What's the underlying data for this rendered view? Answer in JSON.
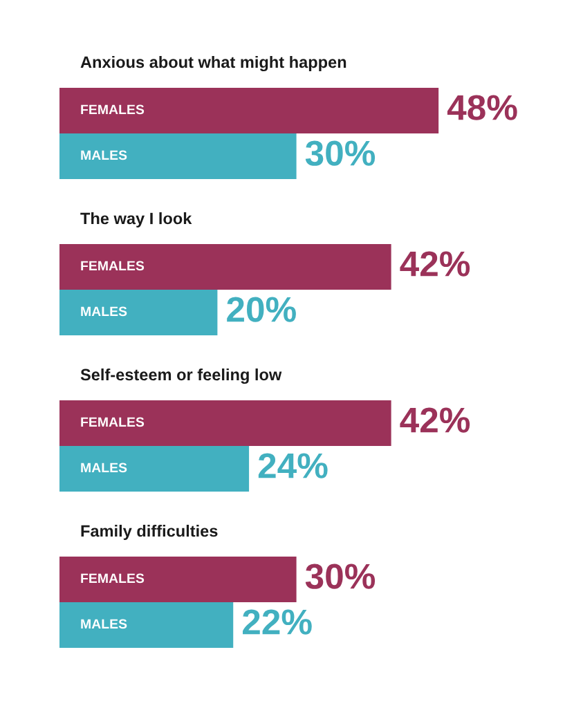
{
  "chart_data": {
    "type": "bar",
    "orientation": "horizontal",
    "categories": [
      "Anxious about what might happen",
      "The way I look",
      "Self-esteem or feeling low",
      "Family difficulties"
    ],
    "series": [
      {
        "name": "FEMALES",
        "color": "#9b3259",
        "values": [
          48,
          42,
          42,
          30
        ],
        "value_labels": [
          "48%",
          "42%",
          "42%",
          "30%"
        ]
      },
      {
        "name": "MALES",
        "color": "#42b0c0",
        "values": [
          30,
          20,
          24,
          22
        ],
        "value_labels": [
          "30%",
          "20%",
          "24%",
          "22%"
        ]
      }
    ],
    "legend": false
  }
}
